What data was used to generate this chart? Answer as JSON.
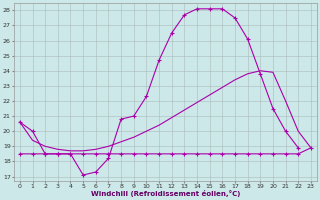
{
  "xlabel": "Windchill (Refroidissement éolien,°C)",
  "bg_color": "#cce8e8",
  "grid_color": "#aabbbb",
  "line_color": "#aa00aa",
  "xlim": [
    -0.5,
    23.5
  ],
  "ylim": [
    16.7,
    28.5
  ],
  "xticks": [
    0,
    1,
    2,
    3,
    4,
    5,
    6,
    7,
    8,
    9,
    10,
    11,
    12,
    13,
    14,
    15,
    16,
    17,
    18,
    19,
    20,
    21,
    22,
    23
  ],
  "yticks": [
    17,
    18,
    19,
    20,
    21,
    22,
    23,
    24,
    25,
    26,
    27,
    28
  ],
  "series1_x": [
    0,
    1,
    2,
    3,
    4,
    5,
    6,
    7,
    8,
    9,
    10,
    11,
    12,
    13,
    14,
    15,
    16,
    17,
    18,
    19,
    20,
    21,
    22
  ],
  "series1_y": [
    20.6,
    20.0,
    18.5,
    18.5,
    18.5,
    17.1,
    17.3,
    18.2,
    20.8,
    21.0,
    22.3,
    24.7,
    26.5,
    27.7,
    28.1,
    28.1,
    28.1,
    27.5,
    26.1,
    23.8,
    21.5,
    20.0,
    18.9
  ],
  "series2_x": [
    0,
    1,
    2,
    3,
    4,
    5,
    6,
    7,
    8,
    9,
    10,
    11,
    12,
    13,
    14,
    15,
    16,
    17,
    18,
    19,
    20,
    21,
    22,
    23
  ],
  "series2_y": [
    18.5,
    18.5,
    18.5,
    18.5,
    18.5,
    18.5,
    18.5,
    18.5,
    18.5,
    18.5,
    18.5,
    18.5,
    18.5,
    18.5,
    18.5,
    18.5,
    18.5,
    18.5,
    18.5,
    18.5,
    18.5,
    18.5,
    18.5,
    18.9
  ],
  "series3_x": [
    0,
    1,
    2,
    3,
    4,
    5,
    6,
    7,
    8,
    9,
    10,
    11,
    12,
    13,
    14,
    15,
    16,
    17,
    18,
    19,
    20,
    21,
    22,
    23
  ],
  "series3_y": [
    20.6,
    19.4,
    19.0,
    18.8,
    18.7,
    18.7,
    18.8,
    19.0,
    19.3,
    19.6,
    20.0,
    20.4,
    20.9,
    21.4,
    21.9,
    22.4,
    22.9,
    23.4,
    23.8,
    24.0,
    23.9,
    22.0,
    20.0,
    18.9
  ]
}
